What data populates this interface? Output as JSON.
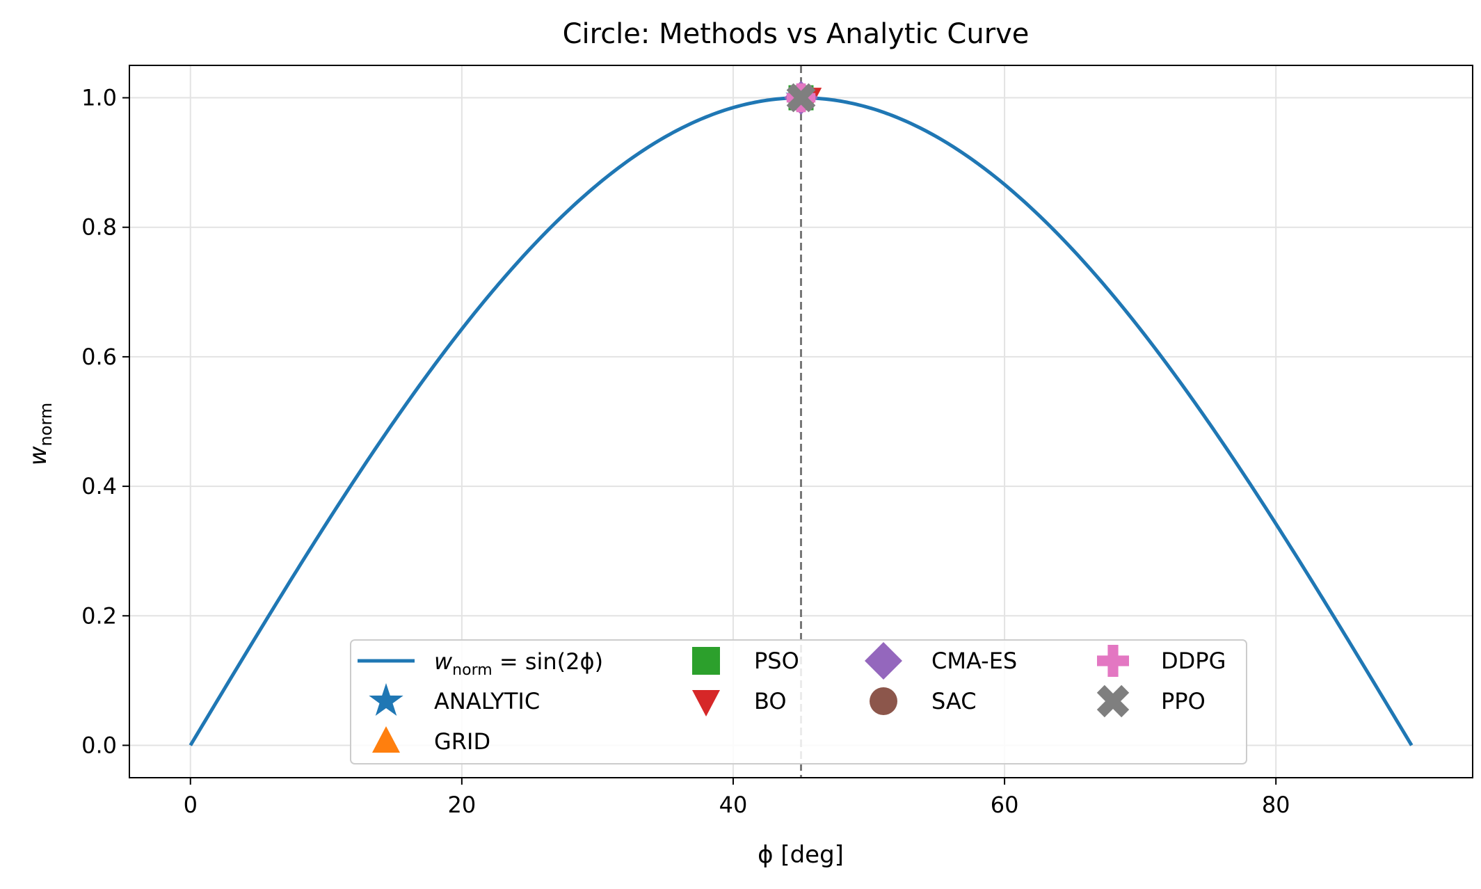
{
  "chart_data": {
    "type": "line",
    "title": "Circle: Methods vs Analytic Curve",
    "xlabel": "ϕ [deg]",
    "ylabel": "w",
    "ylabel_sub": "norm",
    "xlim": [
      -4.5,
      94.5
    ],
    "ylim": [
      -0.05,
      1.05
    ],
    "xticks": [
      0,
      20,
      40,
      60,
      80
    ],
    "yticks": [
      0.0,
      0.2,
      0.4,
      0.6,
      0.8,
      1.0
    ],
    "xtick_labels": [
      "0",
      "20",
      "40",
      "60",
      "80"
    ],
    "ytick_labels": [
      "0.0",
      "0.2",
      "0.4",
      "0.6",
      "0.8",
      "1.0"
    ],
    "grid": true,
    "curve": {
      "name": "w_norm = sin(2ϕ)",
      "function": "sin(2*phi)",
      "x_range": [
        0,
        90
      ],
      "color": "#1f77b4"
    },
    "vline": {
      "x": 45,
      "color": "#777777",
      "style": "dashed"
    },
    "points": [
      {
        "name": "ANALYTIC",
        "x": 45.0,
        "y": 1.0,
        "marker": "star",
        "color": "#1f77b4"
      },
      {
        "name": "GRID",
        "x": 45.0,
        "y": 1.0,
        "marker": "triangle-up",
        "color": "#ff7f0e"
      },
      {
        "name": "PSO",
        "x": 45.0,
        "y": 1.0,
        "marker": "square",
        "color": "#2ca02c"
      },
      {
        "name": "BO",
        "x": 45.6,
        "y": 1.0,
        "marker": "triangle-down",
        "color": "#d62728"
      },
      {
        "name": "CMA-ES",
        "x": 45.0,
        "y": 1.0,
        "marker": "diamond",
        "color": "#9467bd"
      },
      {
        "name": "SAC",
        "x": 45.0,
        "y": 1.0,
        "marker": "circle",
        "color": "#8c564b"
      },
      {
        "name": "DDPG",
        "x": 45.0,
        "y": 1.0,
        "marker": "plus",
        "color": "#e377c2"
      },
      {
        "name": "PPO",
        "x": 45.0,
        "y": 1.0,
        "marker": "x",
        "color": "#7f7f7f"
      }
    ],
    "legend": {
      "placement": "lower-center",
      "curve_label_prefix": "w",
      "curve_label_sub": "norm",
      "curve_label_rest": " = sin(2ϕ)",
      "entries": [
        "ANALYTIC",
        "GRID",
        "PSO",
        "BO",
        "CMA-ES",
        "SAC",
        "DDPG",
        "PPO"
      ]
    }
  }
}
